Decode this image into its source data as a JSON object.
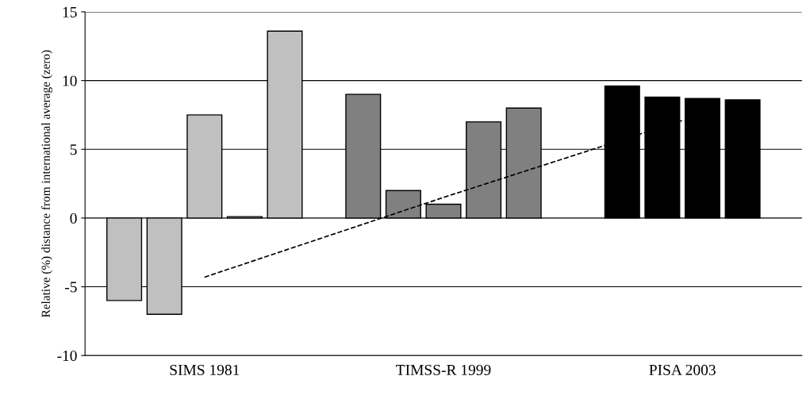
{
  "chart_data": {
    "type": "bar",
    "ylabel": "Relative (%) distance from international average (zero)",
    "categories": [
      "SIMS 1981",
      "TIMSS-R 1999",
      "PISA 2003"
    ],
    "series": [
      {
        "colors": [
          "#c0c0c0",
          "#808080",
          "#000000"
        ],
        "values": [
          -6,
          9,
          9.6
        ]
      },
      {
        "colors": [
          "#c0c0c0",
          "#808080",
          "#000000"
        ],
        "values": [
          -7,
          2,
          8.8
        ]
      },
      {
        "colors": [
          "#c0c0c0",
          "#808080",
          "#000000"
        ],
        "values": [
          7.5,
          1,
          8.7
        ]
      },
      {
        "colors": [
          "#c0c0c0",
          "#808080",
          "#000000"
        ],
        "values": [
          0.1,
          7,
          8.6
        ]
      },
      {
        "colors": [
          "#c0c0c0",
          "#808080",
          "#000000"
        ],
        "values": [
          13.6,
          8,
          null
        ]
      },
      {
        "type": "line",
        "color": "#000000",
        "line_style": "dashed",
        "marker": "none",
        "values": [
          -4.3,
          1.5,
          7.1
        ]
      }
    ],
    "ylim": [
      -10,
      15
    ],
    "yticks": [
      -10,
      -5,
      0,
      5,
      10,
      15
    ],
    "grid": "y",
    "legend": false
  }
}
